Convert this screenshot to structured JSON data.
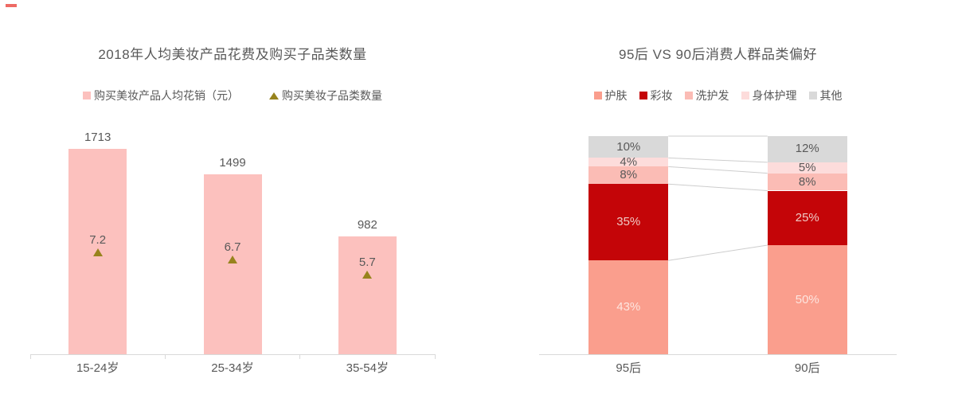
{
  "page": {
    "background": "#ffffff",
    "corner_mark_color": "#ee6a64",
    "text_color": "#595959",
    "axis_color": "#d9d9d9",
    "connector_color": "#cdcdcd"
  },
  "chart_data": [
    {
      "id": "spend-by-age",
      "type": "bar",
      "title": "2018年人均美妆产品花费及购买子品类数量",
      "categories": [
        "15-24岁",
        "25-34岁",
        "35-54岁"
      ],
      "series": [
        {
          "name": "购买美妆产品人均花销（元）",
          "type": "bar",
          "marker": "square",
          "values": [
            1713,
            1499,
            982
          ],
          "color": "#fcc1be"
        },
        {
          "name": "购买美妆子品类数量",
          "type": "point",
          "marker": "triangle",
          "values": [
            7.2,
            6.7,
            5.7
          ],
          "color": "#97831d"
        }
      ],
      "value_labels_shown": true,
      "legend_position": "top",
      "grid": false,
      "ylim_primary": [
        0,
        1870
      ],
      "ylim_secondary_note": "triangle markers plotted on hidden secondary axis"
    },
    {
      "id": "category-preference-95-vs-90",
      "type": "bar",
      "subtype": "stacked-percent",
      "title": "95后 VS 90后消费人群品类偏好",
      "categories": [
        "95后",
        "90后"
      ],
      "unit": "%",
      "series": [
        {
          "name": "护肤",
          "values": [
            43,
            50
          ],
          "color": "#fa9e8d",
          "label_color": "#fde5df"
        },
        {
          "name": "彩妆",
          "values": [
            35,
            25
          ],
          "color": "#c40508",
          "label_color": "#efc9c4"
        },
        {
          "name": "洗护发",
          "values": [
            8,
            8
          ],
          "color": "#fbbcb5",
          "label_color": "#595959"
        },
        {
          "name": "身体护理",
          "values": [
            4,
            5
          ],
          "color": "#fddcdb",
          "label_color": "#595959"
        },
        {
          "name": "其他",
          "values": [
            10,
            12
          ],
          "color": "#d9d9d9",
          "label_color": "#595959"
        }
      ],
      "value_labels_shown": true,
      "legend_position": "top",
      "grid": false,
      "connector_lines": true
    }
  ]
}
